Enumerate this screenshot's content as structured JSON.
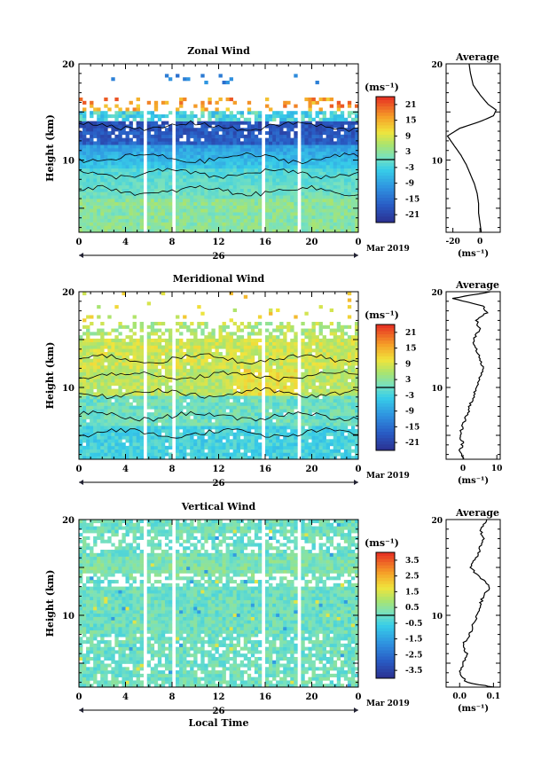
{
  "chart_data": [
    {
      "type": "heatmap",
      "title": "Zonal Wind",
      "ylabel": "Height (km)",
      "xlabel": "",
      "ylim": [
        2.5,
        20
      ],
      "x_ticks": [
        "0",
        "4",
        "8",
        "12",
        "16",
        "20",
        "0"
      ],
      "y_ticks": [
        "20",
        "10"
      ],
      "date_label": "26",
      "month_label": "Mar 2019",
      "colorbar": {
        "unit": "(ms⁻¹)",
        "ticks": [
          "21",
          "15",
          "9",
          "3",
          "-3",
          "-9",
          "-15",
          "-21"
        ],
        "range": [
          -24,
          24
        ]
      },
      "average_panel": {
        "title": "Average",
        "x_ticks": [
          "-20",
          "0"
        ],
        "xlabel": "(ms⁻¹)",
        "x_range": [
          -25,
          15
        ],
        "profile": [
          {
            "h": 2.5,
            "v": 1
          },
          {
            "h": 3.5,
            "v": 0
          },
          {
            "h": 4.5,
            "v": -1
          },
          {
            "h": 5.5,
            "v": -1
          },
          {
            "h": 6.5,
            "v": -2
          },
          {
            "h": 7.5,
            "v": -4
          },
          {
            "h": 8.5,
            "v": -7
          },
          {
            "h": 9.5,
            "v": -10
          },
          {
            "h": 10.5,
            "v": -14
          },
          {
            "h": 11.5,
            "v": -19
          },
          {
            "h": 12.5,
            "v": -24
          },
          {
            "h": 13.3,
            "v": -15
          },
          {
            "h": 14.0,
            "v": 0
          },
          {
            "h": 14.6,
            "v": 10
          },
          {
            "h": 15.2,
            "v": 12
          },
          {
            "h": 15.8,
            "v": 6
          },
          {
            "h": 16.8,
            "v": 0
          },
          {
            "h": 17.8,
            "v": -5
          },
          {
            "h": 19.0,
            "v": -7
          },
          {
            "h": 20.0,
            "v": -8
          }
        ]
      }
    },
    {
      "type": "heatmap",
      "title": "Meridional Wind",
      "ylabel": "Height (km)",
      "xlabel": "",
      "ylim": [
        2.5,
        20
      ],
      "x_ticks": [
        "0",
        "4",
        "8",
        "12",
        "16",
        "20",
        "0"
      ],
      "y_ticks": [
        "20",
        "10"
      ],
      "date_label": "26",
      "month_label": "Mar 2019",
      "colorbar": {
        "unit": "(ms⁻¹)",
        "ticks": [
          "21",
          "15",
          "9",
          "3",
          "-3",
          "-9",
          "-15",
          "-21"
        ],
        "range": [
          -24,
          24
        ]
      },
      "average_panel": {
        "title": "Average",
        "x_ticks": [
          "0",
          "10"
        ],
        "xlabel": "(ms⁻¹)",
        "x_range": [
          -5,
          11
        ],
        "profile": [
          {
            "h": 2.5,
            "v": 0
          },
          {
            "h": 3.3,
            "v": -1
          },
          {
            "h": 4.2,
            "v": 0
          },
          {
            "h": 5.0,
            "v": -1
          },
          {
            "h": 6.0,
            "v": 0
          },
          {
            "h": 7.0,
            "v": 1
          },
          {
            "h": 8.0,
            "v": 2
          },
          {
            "h": 9.0,
            "v": 3
          },
          {
            "h": 10.0,
            "v": 4
          },
          {
            "h": 11.0,
            "v": 5
          },
          {
            "h": 12.0,
            "v": 6
          },
          {
            "h": 13.0,
            "v": 5
          },
          {
            "h": 14.0,
            "v": 4
          },
          {
            "h": 15.0,
            "v": 3
          },
          {
            "h": 16.0,
            "v": 5
          },
          {
            "h": 17.0,
            "v": 4
          },
          {
            "h": 17.8,
            "v": 7
          },
          {
            "h": 18.5,
            "v": 6
          },
          {
            "h": 19.3,
            "v": -3
          },
          {
            "h": 20.0,
            "v": 8
          }
        ]
      }
    },
    {
      "type": "heatmap",
      "title": "Vertical Wind",
      "ylabel": "Height (km)",
      "xlabel": "Local Time",
      "ylim": [
        2.5,
        20
      ],
      "x_ticks": [
        "0",
        "4",
        "8",
        "12",
        "16",
        "20",
        "0"
      ],
      "y_ticks": [
        "20",
        "10"
      ],
      "date_label": "26",
      "month_label": "Mar 2019",
      "colorbar": {
        "unit": "(ms⁻¹)",
        "ticks": [
          "3.5",
          "2.5",
          "1.5",
          "0.5",
          "-0.5",
          "-1.5",
          "-2.5",
          "-3.5"
        ],
        "range": [
          -4,
          4
        ]
      },
      "average_panel": {
        "title": "Average",
        "x_ticks": [
          "0.0",
          "0.1"
        ],
        "xlabel": "(ms⁻¹)",
        "x_range": [
          -0.04,
          0.12
        ],
        "profile": [
          {
            "h": 2.5,
            "v": 0.1
          },
          {
            "h": 3.0,
            "v": 0.02
          },
          {
            "h": 4.0,
            "v": 0.0
          },
          {
            "h": 5.0,
            "v": 0.01
          },
          {
            "h": 6.0,
            "v": 0.02
          },
          {
            "h": 7.0,
            "v": 0.01
          },
          {
            "h": 8.0,
            "v": 0.03
          },
          {
            "h": 9.0,
            "v": 0.04
          },
          {
            "h": 10.0,
            "v": 0.05
          },
          {
            "h": 11.0,
            "v": 0.06
          },
          {
            "h": 12.0,
            "v": 0.07
          },
          {
            "h": 13.0,
            "v": 0.09
          },
          {
            "h": 14.0,
            "v": 0.06
          },
          {
            "h": 15.0,
            "v": 0.03
          },
          {
            "h": 16.0,
            "v": 0.05
          },
          {
            "h": 17.0,
            "v": 0.06
          },
          {
            "h": 18.0,
            "v": 0.07
          },
          {
            "h": 19.0,
            "v": 0.06
          },
          {
            "h": 20.0,
            "v": 0.08
          }
        ]
      }
    }
  ]
}
